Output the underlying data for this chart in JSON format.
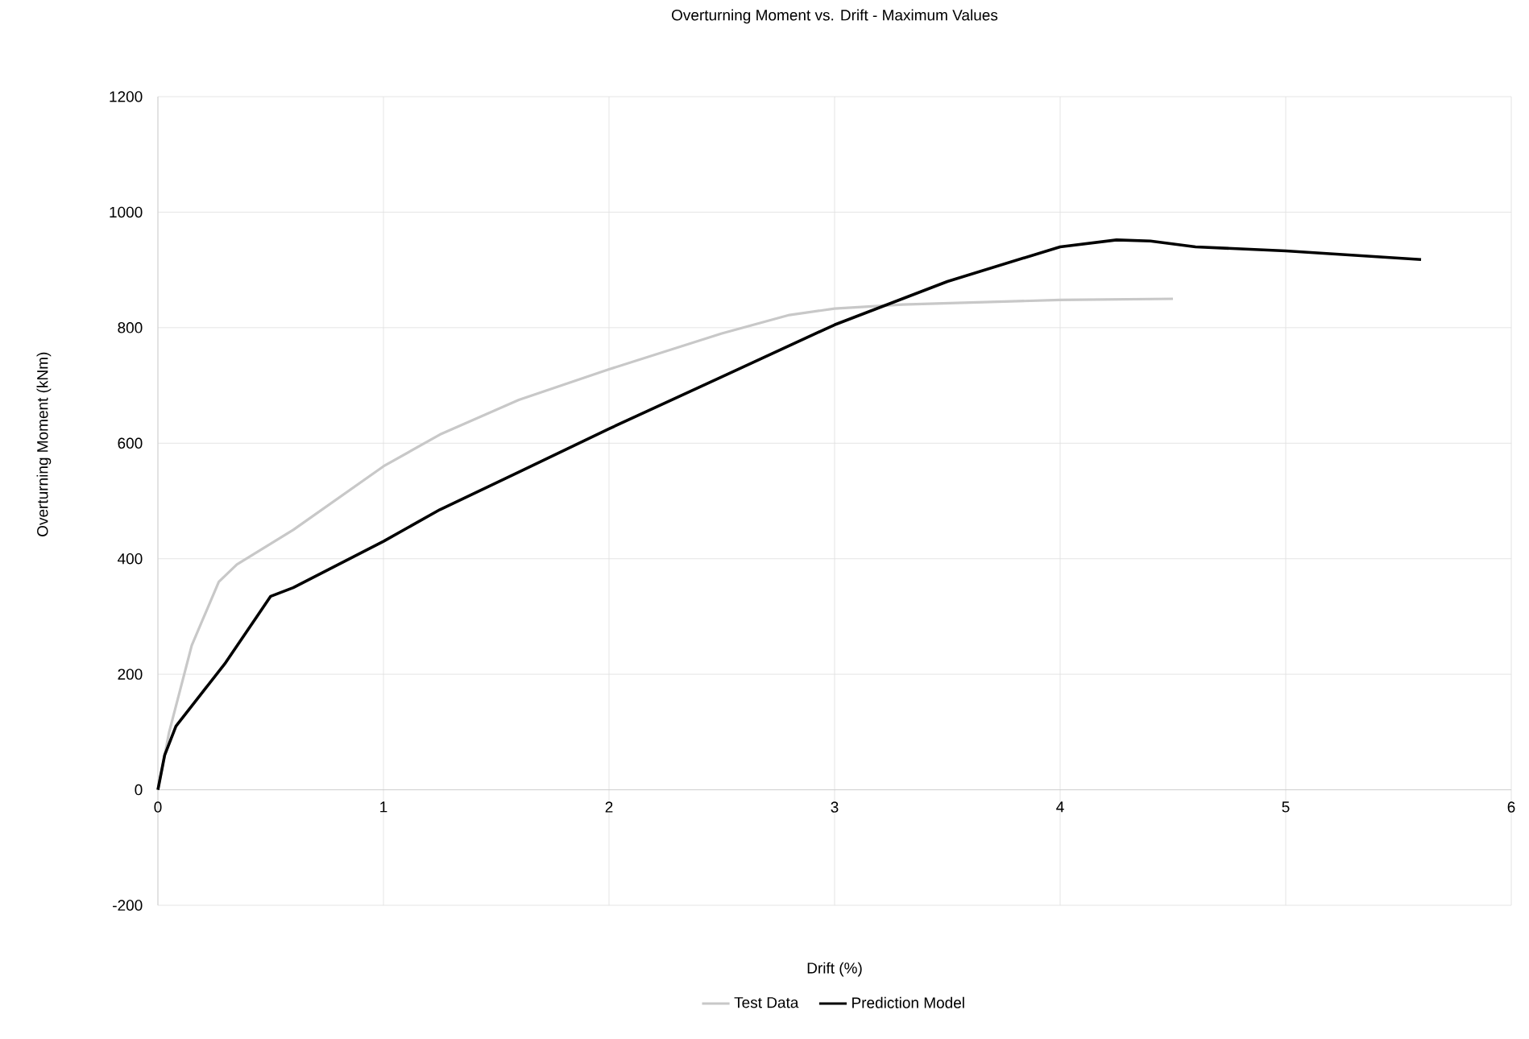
{
  "chart_data": {
    "type": "line",
    "title": "Overturning Moment vs. Drift - Maximum Values",
    "xlabel": "Drift (%)",
    "ylabel": "Overturning Moment (kNm)",
    "xlim": [
      0,
      6
    ],
    "xticks": [
      0,
      1,
      2,
      3,
      4,
      5,
      6
    ],
    "ylim": [
      -200,
      1200
    ],
    "yticks": [
      -200,
      0,
      200,
      400,
      600,
      800,
      1000,
      1200
    ],
    "grid": true,
    "legend": "bottom",
    "marker": "none",
    "line_style": "solid",
    "series": [
      {
        "name": "Test Data",
        "color": "#c8c8c8",
        "x": [
          0,
          0.05,
          0.15,
          0.27,
          0.35,
          0.6,
          1.0,
          1.25,
          1.6,
          2.0,
          2.5,
          2.8,
          3.0,
          3.3,
          4.0,
          4.5
        ],
        "values": [
          0,
          100,
          250,
          360,
          390,
          450,
          560,
          615,
          675,
          728,
          790,
          822,
          833,
          840,
          848,
          850
        ]
      },
      {
        "name": "Prediction Model",
        "color": "#000000",
        "x": [
          0,
          0.03,
          0.08,
          0.2,
          0.3,
          0.5,
          0.6,
          1.0,
          1.25,
          1.6,
          2.0,
          2.5,
          3.0,
          3.5,
          4.0,
          4.25,
          4.4,
          4.6,
          5.0,
          5.6
        ],
        "values": [
          0,
          60,
          110,
          170,
          220,
          335,
          350,
          430,
          485,
          550,
          625,
          715,
          805,
          880,
          940,
          952,
          950,
          940,
          933,
          918
        ]
      }
    ]
  }
}
